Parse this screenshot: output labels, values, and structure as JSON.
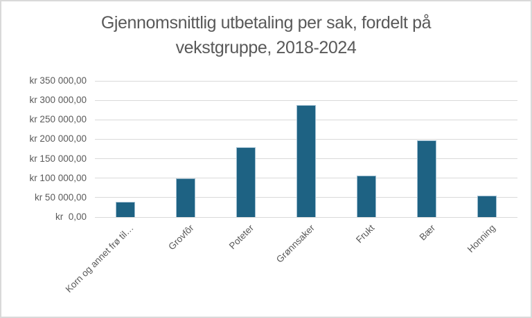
{
  "window": {
    "background": "#ffffff",
    "frame_border_color": "#d9d9d9"
  },
  "title": {
    "lines": [
      "Gjennomsnittlig utbetaling per sak, fordelt på",
      "vekstgruppe, 2018-2024"
    ],
    "color": "#595959"
  },
  "chart_data": {
    "type": "bar",
    "title": "Gjennomsnittlig utbetaling per sak, fordelt på vekstgruppe, 2018-2024",
    "categories": [
      "Korn og annet frø til…",
      "Grovfôr",
      "Poteter",
      "Grønnsaker",
      "Frukt",
      "Bær",
      "Honning"
    ],
    "values": [
      39000,
      100000,
      180000,
      288000,
      107000,
      198000,
      55000
    ],
    "currency_prefix": "kr",
    "xlabel": "",
    "ylabel": "",
    "ylim": [
      0,
      350000
    ],
    "ytick_interval": 50000,
    "ytick_labels": [
      "kr  0,00",
      "kr 50 000,00",
      "kr 100 000,00",
      "kr 150 000,00",
      "kr 200 000,00",
      "kr 250 000,00",
      "kr 300 000,00",
      "kr 350 000,00"
    ],
    "grid": true,
    "legend_position": "none",
    "x_label_rotation_deg": 45,
    "bar_color": "#1e6283",
    "bar_border_color": "#a0bfd2",
    "gridline_color": "#d9d9d9",
    "axis_label_color": "#595959"
  }
}
